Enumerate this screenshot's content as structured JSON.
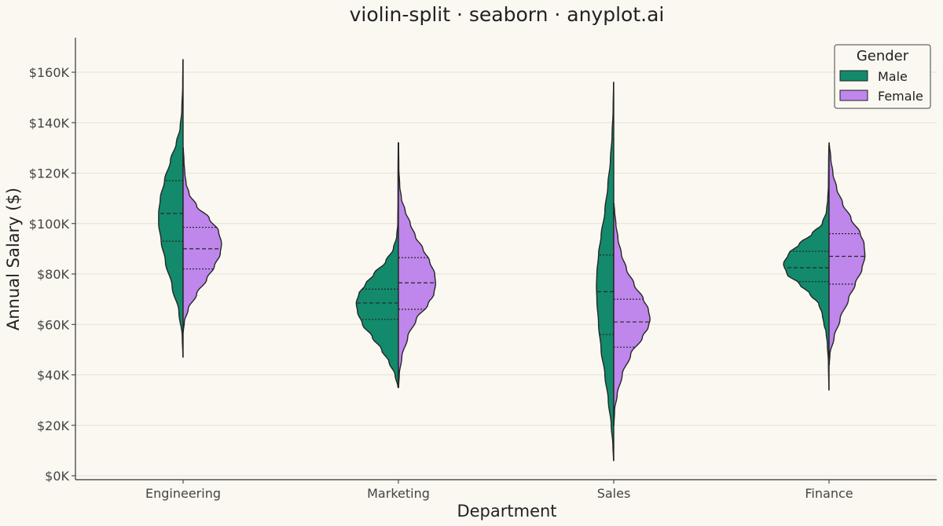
{
  "chart_data": {
    "type": "violin",
    "title": "violin-split · seaborn · anyplot.ai",
    "xlabel": "Department",
    "ylabel": "Annual Salary ($)",
    "categories": [
      "Engineering",
      "Marketing",
      "Sales",
      "Finance"
    ],
    "ylim": [
      0,
      170000
    ],
    "yticks": [
      0,
      20000,
      40000,
      60000,
      80000,
      100000,
      120000,
      140000,
      160000
    ],
    "ytick_labels": [
      "$0K",
      "$20K",
      "$40K",
      "$60K",
      "$80K",
      "$100K",
      "$120K",
      "$140K",
      "$160K"
    ],
    "grid": "horizontal",
    "legend": {
      "title": "Gender",
      "position": "top-right"
    },
    "series": [
      {
        "name": "Male",
        "color": "#128A6B",
        "violins": [
          {
            "min": 47000,
            "max": 165000,
            "q1": 93000,
            "median": 104000,
            "q3": 117000,
            "profile": [
              [
                47000,
                0.5
              ],
              [
                55000,
                2
              ],
              [
                65000,
                10
              ],
              [
                75000,
                26
              ],
              [
                85000,
                42
              ],
              [
                93000,
                52
              ],
              [
                100000,
                58
              ],
              [
                104000,
                58
              ],
              [
                110000,
                54
              ],
              [
                117000,
                44
              ],
              [
                125000,
                30
              ],
              [
                132000,
                16
              ],
              [
                138000,
                7
              ],
              [
                145000,
                3
              ],
              [
                155000,
                1
              ],
              [
                165000,
                0.5
              ]
            ]
          },
          {
            "min": 35000,
            "max": 132000,
            "q1": 62000,
            "median": 68500,
            "q3": 74000,
            "profile": [
              [
                35000,
                1
              ],
              [
                40000,
                8
              ],
              [
                45000,
                22
              ],
              [
                50000,
                40
              ],
              [
                55000,
                62
              ],
              [
                60000,
                85
              ],
              [
                65000,
                97
              ],
              [
                68500,
                100
              ],
              [
                72000,
                94
              ],
              [
                76000,
                78
              ],
              [
                80000,
                58
              ],
              [
                85000,
                30
              ],
              [
                90000,
                12
              ],
              [
                95000,
                4
              ],
              [
                100000,
                1.5
              ],
              [
                110000,
                1
              ],
              [
                120000,
                1
              ],
              [
                132000,
                0.5
              ]
            ]
          },
          {
            "min": 6000,
            "max": 156000,
            "q1": 56000,
            "median": 73000,
            "q3": 87500,
            "profile": [
              [
                6000,
                0.5
              ],
              [
                12000,
                2
              ],
              [
                20000,
                6
              ],
              [
                30000,
                13
              ],
              [
                40000,
                21
              ],
              [
                50000,
                30
              ],
              [
                60000,
                36
              ],
              [
                70000,
                40
              ],
              [
                75000,
                41
              ],
              [
                80000,
                40
              ],
              [
                88000,
                36
              ],
              [
                95000,
                30
              ],
              [
                105000,
                21
              ],
              [
                115000,
                14
              ],
              [
                125000,
                8
              ],
              [
                135000,
                4
              ],
              [
                145000,
                1.5
              ],
              [
                156000,
                0.5
              ]
            ]
          },
          {
            "min": 34000,
            "max": 131000,
            "q1": 77000,
            "median": 82500,
            "q3": 89000,
            "profile": [
              [
                34000,
                0.5
              ],
              [
                45000,
                1.5
              ],
              [
                52000,
                4
              ],
              [
                57000,
                7
              ],
              [
                60000,
                12
              ],
              [
                64000,
                16
              ],
              [
                68000,
                24
              ],
              [
                72000,
                45
              ],
              [
                76000,
                70
              ],
              [
                80000,
                100
              ],
              [
                84000,
                108
              ],
              [
                88000,
                96
              ],
              [
                92000,
                70
              ],
              [
                96000,
                40
              ],
              [
                100000,
                16
              ],
              [
                105000,
                6
              ],
              [
                110000,
                3
              ],
              [
                115000,
                1.5
              ],
              [
                125000,
                1
              ],
              [
                131000,
                0.5
              ]
            ]
          }
        ]
      },
      {
        "name": "Female",
        "color": "#BF86EC",
        "violins": [
          {
            "min": 57000,
            "max": 130000,
            "q1": 82000,
            "median": 90000,
            "q3": 98500,
            "profile": [
              [
                57000,
                0.5
              ],
              [
                61000,
                3
              ],
              [
                66000,
                12
              ],
              [
                72000,
                32
              ],
              [
                78000,
                56
              ],
              [
                83000,
                74
              ],
              [
                88000,
                88
              ],
              [
                92000,
                91
              ],
              [
                97000,
                84
              ],
              [
                102000,
                62
              ],
              [
                107000,
                32
              ],
              [
                112000,
                14
              ],
              [
                116000,
                7
              ],
              [
                120000,
                4
              ],
              [
                125000,
                2
              ],
              [
                130000,
                0.5
              ]
            ]
          },
          {
            "min": 35000,
            "max": 132000,
            "q1": 66000,
            "median": 76500,
            "q3": 86500,
            "profile": [
              [
                35000,
                0.5
              ],
              [
                40000,
                2
              ],
              [
                47000,
                8
              ],
              [
                55000,
                22
              ],
              [
                62000,
                42
              ],
              [
                68000,
                70
              ],
              [
                72000,
                84
              ],
              [
                76000,
                88
              ],
              [
                80000,
                86
              ],
              [
                85000,
                74
              ],
              [
                90000,
                58
              ],
              [
                95000,
                40
              ],
              [
                100000,
                28
              ],
              [
                105000,
                16
              ],
              [
                110000,
                7
              ],
              [
                115000,
                3
              ],
              [
                122000,
                1
              ],
              [
                132000,
                0.5
              ]
            ]
          },
          {
            "min": 20000,
            "max": 108000,
            "q1": 51000,
            "median": 61000,
            "q3": 70000,
            "profile": [
              [
                20000,
                0.5
              ],
              [
                26000,
                2
              ],
              [
                32000,
                8
              ],
              [
                40000,
                20
              ],
              [
                48000,
                40
              ],
              [
                55000,
                68
              ],
              [
                59000,
                82
              ],
              [
                62000,
                86
              ],
              [
                66000,
                82
              ],
              [
                70000,
                70
              ],
              [
                76000,
                48
              ],
              [
                82000,
                30
              ],
              [
                88000,
                18
              ],
              [
                94000,
                10
              ],
              [
                100000,
                5
              ],
              [
                105000,
                2
              ],
              [
                108000,
                0.5
              ]
            ]
          },
          {
            "min": 44000,
            "max": 132000,
            "q1": 76000,
            "median": 87000,
            "q3": 96000,
            "profile": [
              [
                44000,
                0.5
              ],
              [
                48000,
                2
              ],
              [
                55000,
                12
              ],
              [
                62000,
                26
              ],
              [
                70000,
                46
              ],
              [
                76000,
                62
              ],
              [
                82000,
                78
              ],
              [
                87000,
                85
              ],
              [
                92000,
                83
              ],
              [
                96000,
                74
              ],
              [
                102000,
                52
              ],
              [
                108000,
                32
              ],
              [
                114000,
                18
              ],
              [
                120000,
                9
              ],
              [
                126000,
                4
              ],
              [
                132000,
                0.5
              ]
            ]
          }
        ]
      }
    ]
  }
}
